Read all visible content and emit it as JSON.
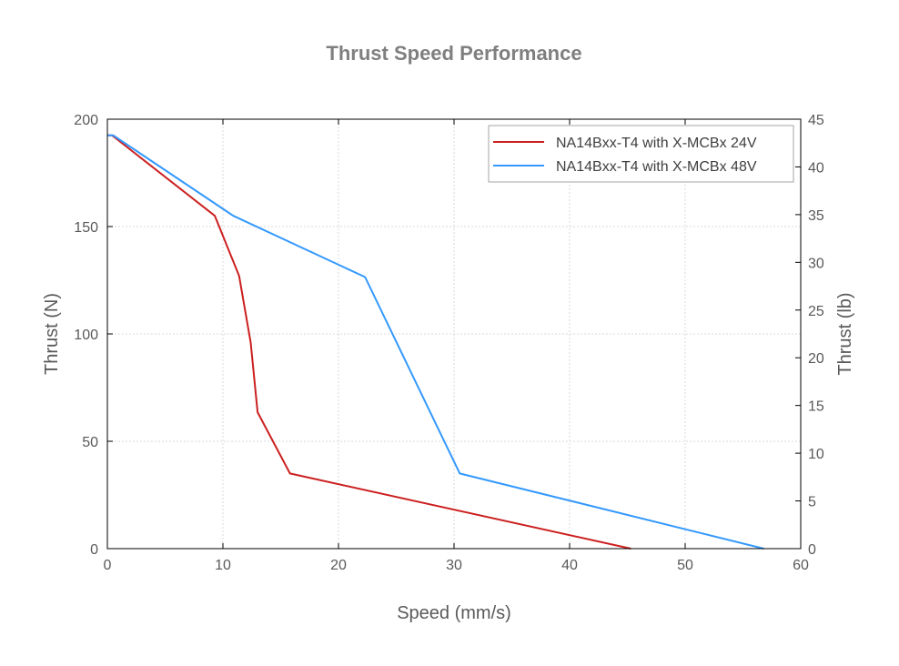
{
  "chart_data": {
    "type": "line",
    "title": "Thrust Speed Performance",
    "xlabel": "Speed (mm/s)",
    "ylabel": "Thrust (N)",
    "y2label": "Thrust (lb)",
    "xlim": [
      0,
      60
    ],
    "ylim": [
      0,
      200
    ],
    "y2lim": [
      0,
      45
    ],
    "xticks": [
      0,
      10,
      20,
      30,
      40,
      50,
      60
    ],
    "yticks": [
      0,
      50,
      100,
      150,
      200
    ],
    "y2ticks": [
      0,
      5,
      10,
      15,
      20,
      25,
      30,
      35,
      40,
      45
    ],
    "grid": true,
    "legend_position": "top-right",
    "series": [
      {
        "name": "NA14Bxx-T4 with X-MCBx 24V",
        "color": "#cc1f1f",
        "x": [
          0,
          0.4,
          9.3,
          11.4,
          12.4,
          13.0,
          15.8,
          45.3
        ],
        "y": [
          192.5,
          192.5,
          155,
          127,
          96,
          63.5,
          35,
          0
        ]
      },
      {
        "name": "NA14Bxx-T4 with X-MCBx 48V",
        "color": "#3399ff",
        "x": [
          0,
          0.5,
          10.9,
          22.3,
          30.5,
          56.8
        ],
        "y": [
          192.5,
          192.5,
          155,
          126.5,
          35,
          0
        ]
      }
    ]
  }
}
